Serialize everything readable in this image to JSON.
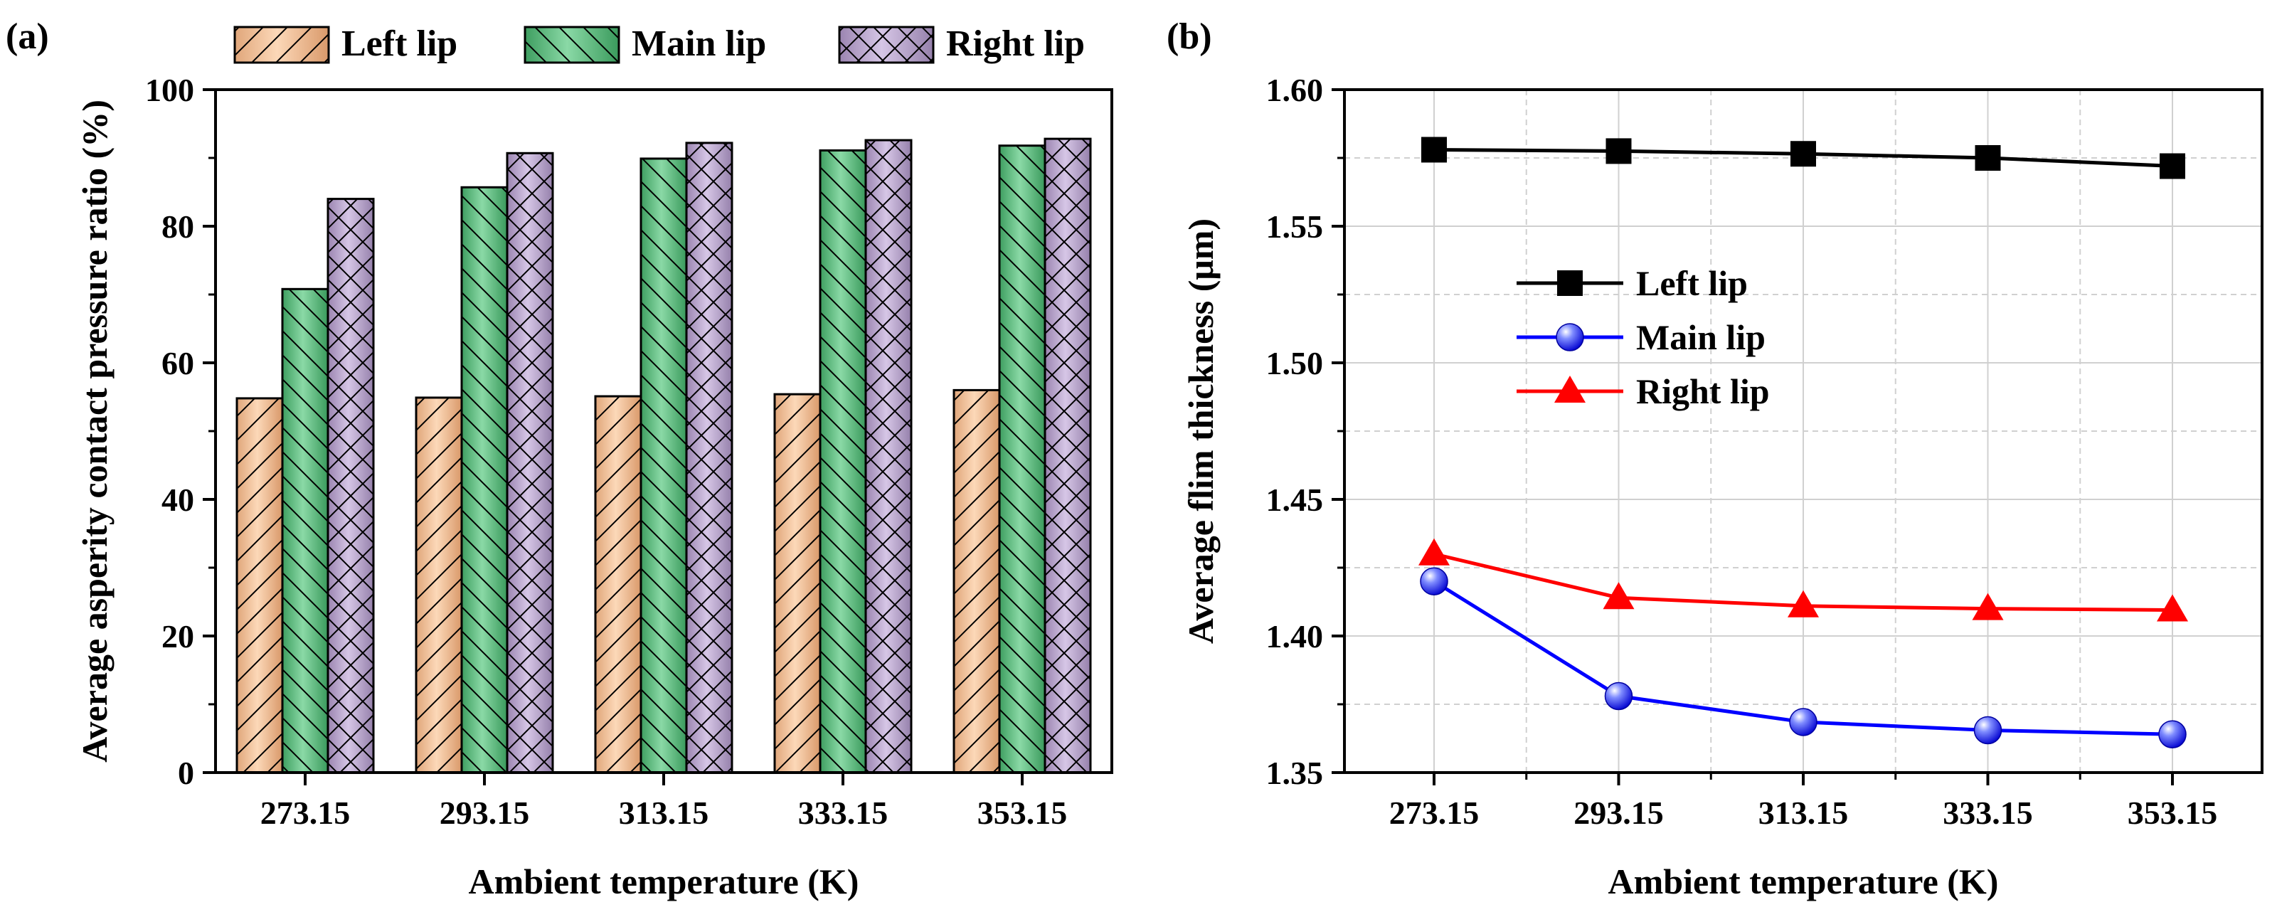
{
  "chart_data": [
    {
      "panel_label": "(a)",
      "type": "bar",
      "title": "",
      "xlabel": "Ambient temperature (K)",
      "ylabel": "Average asperity contact pressure ratio (%)",
      "categories": [
        "273.15",
        "293.15",
        "313.15",
        "333.15",
        "353.15"
      ],
      "ylim": [
        0,
        100
      ],
      "yticks": [
        0,
        20,
        40,
        60,
        80,
        100
      ],
      "ytick_labels": [
        "0",
        "20",
        "40",
        "60",
        "80",
        "100"
      ],
      "legend_position": "top, outside",
      "series": [
        {
          "name": "Left lip",
          "color": "#f7c79e",
          "pattern": "diagonal-hatch",
          "values": [
            54.8,
            54.9,
            55.1,
            55.4,
            56.0
          ]
        },
        {
          "name": "Main lip",
          "color": "#67c387",
          "pattern": "back-diagonal-hatch",
          "values": [
            70.8,
            85.7,
            89.9,
            91.1,
            91.8
          ]
        },
        {
          "name": "Right lip",
          "color": "#b9a2cd",
          "pattern": "cross-hatch",
          "values": [
            84.0,
            90.7,
            92.2,
            92.6,
            92.8
          ]
        }
      ]
    },
    {
      "panel_label": "(b)",
      "type": "line",
      "title": "",
      "xlabel": "Ambient temperature (K)",
      "ylabel": "Average flim thickness (μm)",
      "categories": [
        "273.15",
        "293.15",
        "313.15",
        "333.15",
        "353.15"
      ],
      "ylim": [
        1.35,
        1.6
      ],
      "yticks": [
        1.35,
        1.4,
        1.45,
        1.5,
        1.55,
        1.6
      ],
      "ytick_labels": [
        "1.35",
        "1.40",
        "1.45",
        "1.50",
        "1.55",
        "1.60"
      ],
      "grid": true,
      "legend_position": "upper-left inside",
      "series": [
        {
          "name": "Left lip",
          "color": "#000000",
          "marker": "square",
          "values": [
            1.578,
            1.5775,
            1.5765,
            1.575,
            1.572
          ]
        },
        {
          "name": "Main lip",
          "color": "#0000ff",
          "marker": "sphere",
          "values": [
            1.42,
            1.378,
            1.3685,
            1.3655,
            1.364
          ]
        },
        {
          "name": "Right lip",
          "color": "#ff0000",
          "marker": "triangle",
          "values": [
            1.43,
            1.414,
            1.411,
            1.41,
            1.4095
          ]
        }
      ]
    }
  ]
}
